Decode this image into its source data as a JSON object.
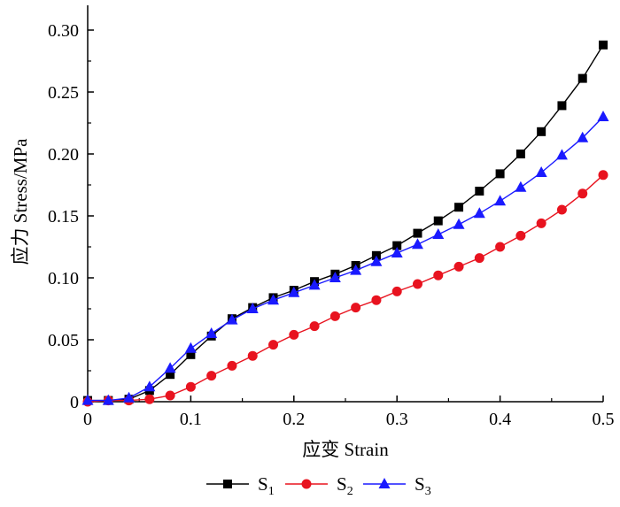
{
  "chart_data": {
    "type": "line",
    "title": "",
    "xlabel": "应变 Strain",
    "ylabel": "应力 Stress/MPa",
    "xlim": [
      0,
      0.5
    ],
    "ylim": [
      0,
      0.32
    ],
    "grid": false,
    "legend_position": "bottom",
    "x_ticks": [
      0,
      0.1,
      0.2,
      0.3,
      0.4,
      0.5
    ],
    "x_tick_labels": [
      "0",
      "0.1",
      "0.2",
      "0.3",
      "0.4",
      "0.5"
    ],
    "y_ticks": [
      0,
      0.05,
      0.1,
      0.15,
      0.2,
      0.25,
      0.3
    ],
    "y_tick_labels": [
      "0",
      "0.05",
      "0.10",
      "0.15",
      "0.20",
      "0.25",
      "0.30"
    ],
    "x": [
      0,
      0.02,
      0.04,
      0.06,
      0.08,
      0.1,
      0.12,
      0.14,
      0.16,
      0.18,
      0.2,
      0.22,
      0.24,
      0.26,
      0.28,
      0.3,
      0.32,
      0.34,
      0.36,
      0.38,
      0.4,
      0.42,
      0.44,
      0.46,
      0.48,
      0.5
    ],
    "series": [
      {
        "name": "S1",
        "label_main": "S",
        "label_sub": "1",
        "color": "#000000",
        "marker": "square",
        "values": [
          0.001,
          0.001,
          0.002,
          0.009,
          0.022,
          0.038,
          0.053,
          0.067,
          0.076,
          0.084,
          0.09,
          0.097,
          0.103,
          0.11,
          0.118,
          0.126,
          0.136,
          0.146,
          0.157,
          0.17,
          0.184,
          0.2,
          0.218,
          0.239,
          0.261,
          0.288
        ]
      },
      {
        "name": "S2",
        "label_main": "S",
        "label_sub": "2",
        "color": "#e8131f",
        "marker": "circle",
        "values": [
          0.0,
          0.001,
          0.001,
          0.002,
          0.005,
          0.012,
          0.021,
          0.029,
          0.037,
          0.046,
          0.054,
          0.061,
          0.069,
          0.076,
          0.082,
          0.089,
          0.095,
          0.102,
          0.109,
          0.116,
          0.125,
          0.134,
          0.144,
          0.155,
          0.168,
          0.183
        ]
      },
      {
        "name": "S3",
        "label_main": "S",
        "label_sub": "3",
        "color": "#1a1aff",
        "marker": "triangle",
        "values": [
          0.001,
          0.001,
          0.003,
          0.012,
          0.027,
          0.043,
          0.055,
          0.066,
          0.075,
          0.082,
          0.088,
          0.094,
          0.1,
          0.106,
          0.113,
          0.12,
          0.127,
          0.135,
          0.143,
          0.152,
          0.162,
          0.173,
          0.185,
          0.199,
          0.213,
          0.23
        ]
      }
    ]
  }
}
